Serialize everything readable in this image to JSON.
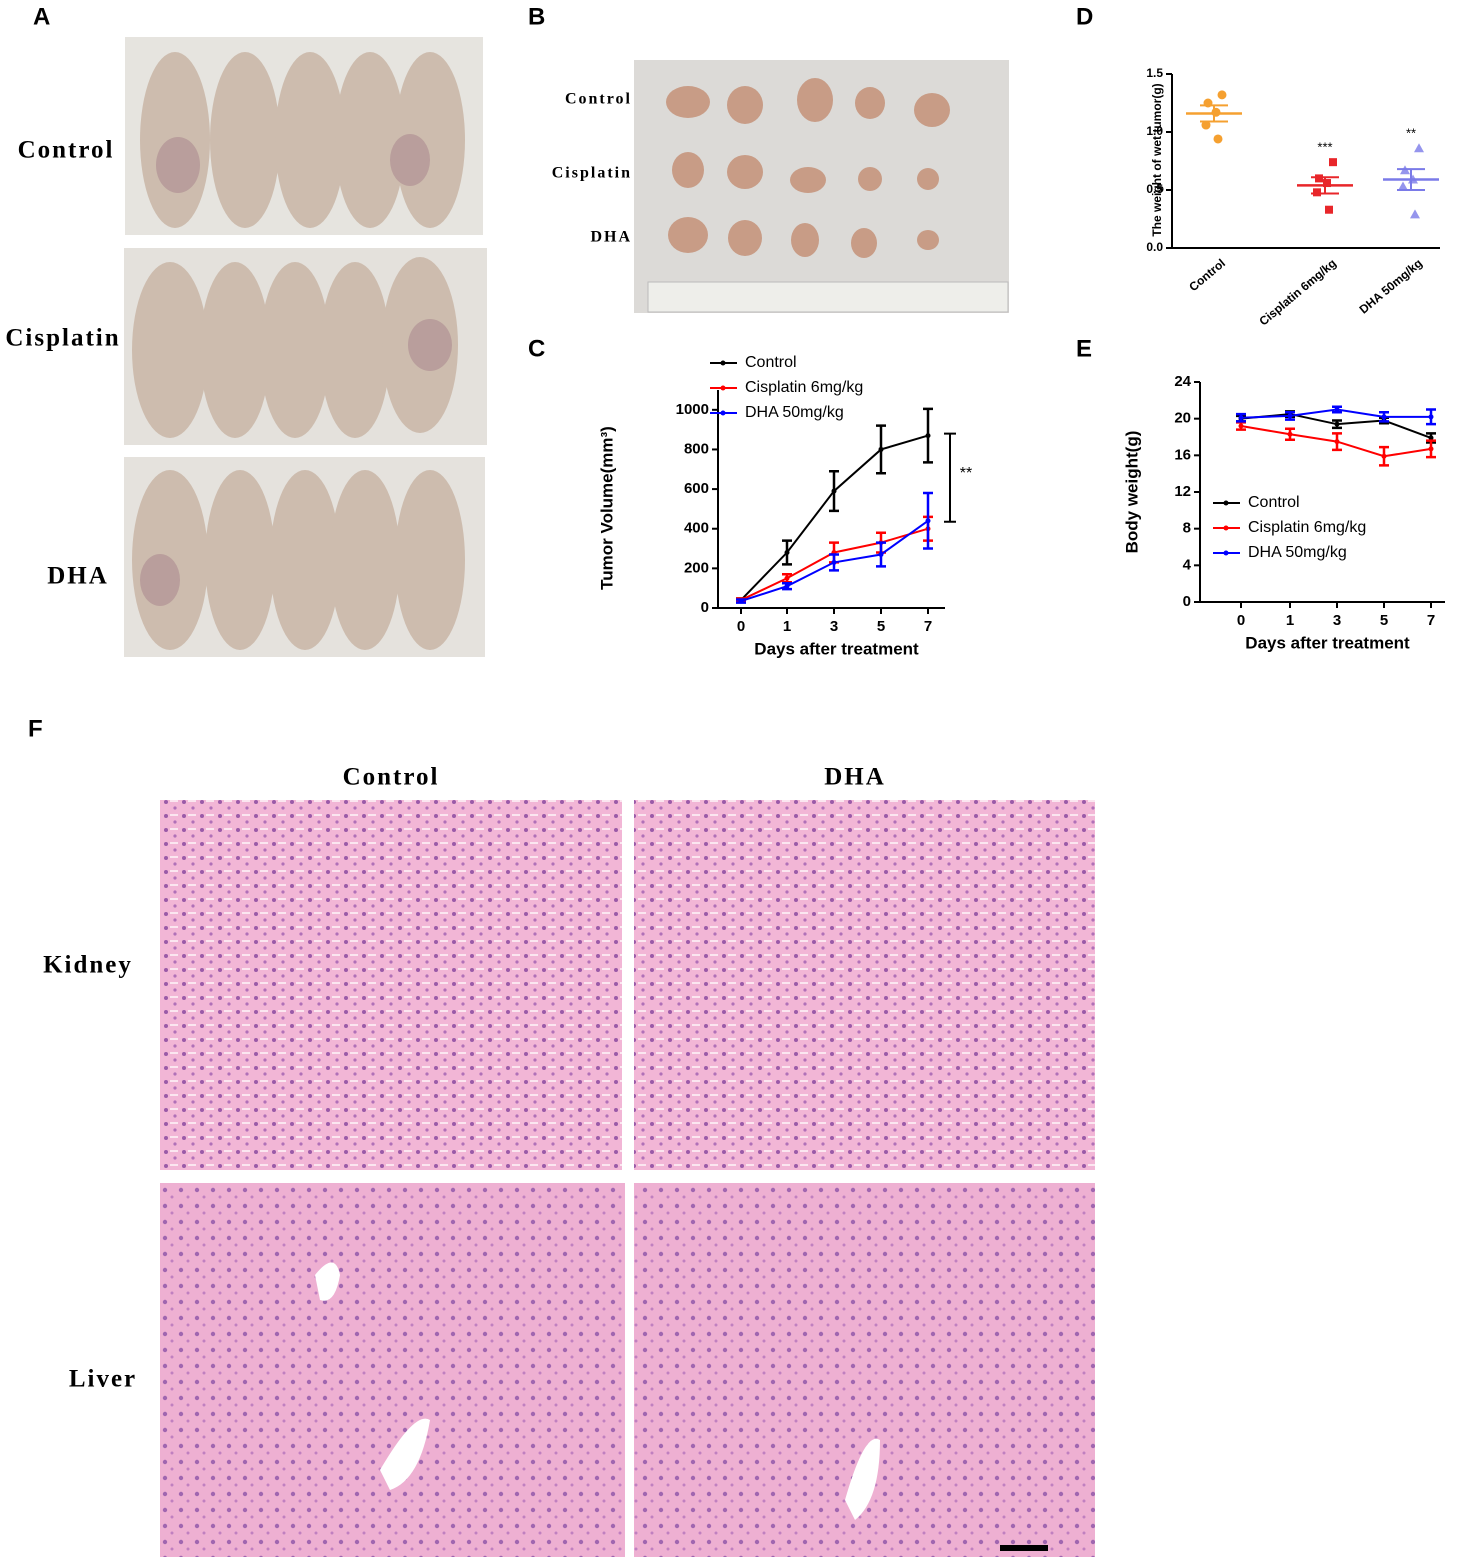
{
  "panel_labels": [
    "A",
    "B",
    "C",
    "D",
    "E",
    "F"
  ],
  "panel_a": {
    "rows": [
      "Control",
      "Cisplatin",
      "DHA"
    ]
  },
  "panel_b": {
    "rows": [
      "Control",
      "Cisplatin",
      "DHA"
    ]
  },
  "chart_data": [
    {
      "type": "line",
      "ylabel": "Tumor Volume(mm³)",
      "xlabel": "Days after treatment",
      "categories": [
        "0",
        "1",
        "3",
        "5",
        "7"
      ],
      "ylim": [
        0,
        1100
      ],
      "yticks": [
        0,
        200,
        400,
        600,
        800,
        1000
      ],
      "series": [
        {
          "name": "Control",
          "color": "#000000",
          "values": [
            40,
            280,
            590,
            800,
            870
          ],
          "errors": [
            8,
            60,
            100,
            120,
            135
          ]
        },
        {
          "name": "Cisplatin 6mg/kg",
          "color": "#ff0000",
          "values": [
            40,
            150,
            280,
            330,
            400
          ],
          "errors": [
            8,
            20,
            50,
            50,
            60
          ]
        },
        {
          "name": "DHA 50mg/kg",
          "color": "#0000ff",
          "values": [
            35,
            110,
            230,
            270,
            440
          ],
          "errors": [
            8,
            15,
            40,
            60,
            140
          ]
        }
      ],
      "annotation": {
        "text": "**",
        "range": [
          435,
          880
        ]
      }
    },
    {
      "type": "dot",
      "ylabel": "The weight of wet tumor(g)",
      "categories": [
        "Control",
        "Cisplatin 6mg/kg",
        "DHA 50mg/kg"
      ],
      "ylim": [
        0,
        1.5
      ],
      "yticks": [
        {
          "value": 0,
          "label": "0.0"
        },
        0.5,
        {
          "value": 1,
          "label": "1.0"
        },
        1.5
      ],
      "series": [
        {
          "color": "#f5a030",
          "marker": "circle",
          "points": [
            1.32,
            1.25,
            1.17,
            1.06,
            0.94
          ],
          "mean": 1.16,
          "sem": 0.07
        },
        {
          "color": "#e8262a",
          "marker": "square",
          "points": [
            0.74,
            0.6,
            0.56,
            0.48,
            0.33
          ],
          "mean": 0.54,
          "sem": 0.07,
          "annotation": "***"
        },
        {
          "color": "#7a7ae8",
          "marker": "triangle",
          "points": [
            0.86,
            0.67,
            0.59,
            0.53,
            0.29
          ],
          "mean": 0.59,
          "sem": 0.09,
          "annotation": "**"
        }
      ]
    },
    {
      "type": "line",
      "ylabel": "Body weight(g)",
      "xlabel": "Days after treatment",
      "categories": [
        "0",
        "1",
        "3",
        "5",
        "7"
      ],
      "ylim": [
        0,
        24
      ],
      "yticks": [
        0,
        4,
        8,
        12,
        16,
        20,
        24
      ],
      "series": [
        {
          "name": "Control",
          "color": "#000000",
          "values": [
            20,
            20.5,
            19.4,
            19.8,
            17.9
          ],
          "errors": [
            0.3,
            0.3,
            0.4,
            0.3,
            0.5
          ]
        },
        {
          "name": "Cisplatin 6mg/kg",
          "color": "#ff0000",
          "values": [
            19.2,
            18.3,
            17.5,
            15.9,
            16.7
          ],
          "errors": [
            0.4,
            0.6,
            0.9,
            1.0,
            0.9
          ]
        },
        {
          "name": "DHA 50mg/kg",
          "color": "#0000ff",
          "values": [
            20.1,
            20.3,
            21.0,
            20.2,
            20.2
          ],
          "errors": [
            0.4,
            0.4,
            0.3,
            0.5,
            0.8
          ]
        }
      ]
    }
  ],
  "panel_f": {
    "columns": [
      "Control",
      "DHA"
    ],
    "rows": [
      "Kidney",
      "Liver"
    ]
  }
}
